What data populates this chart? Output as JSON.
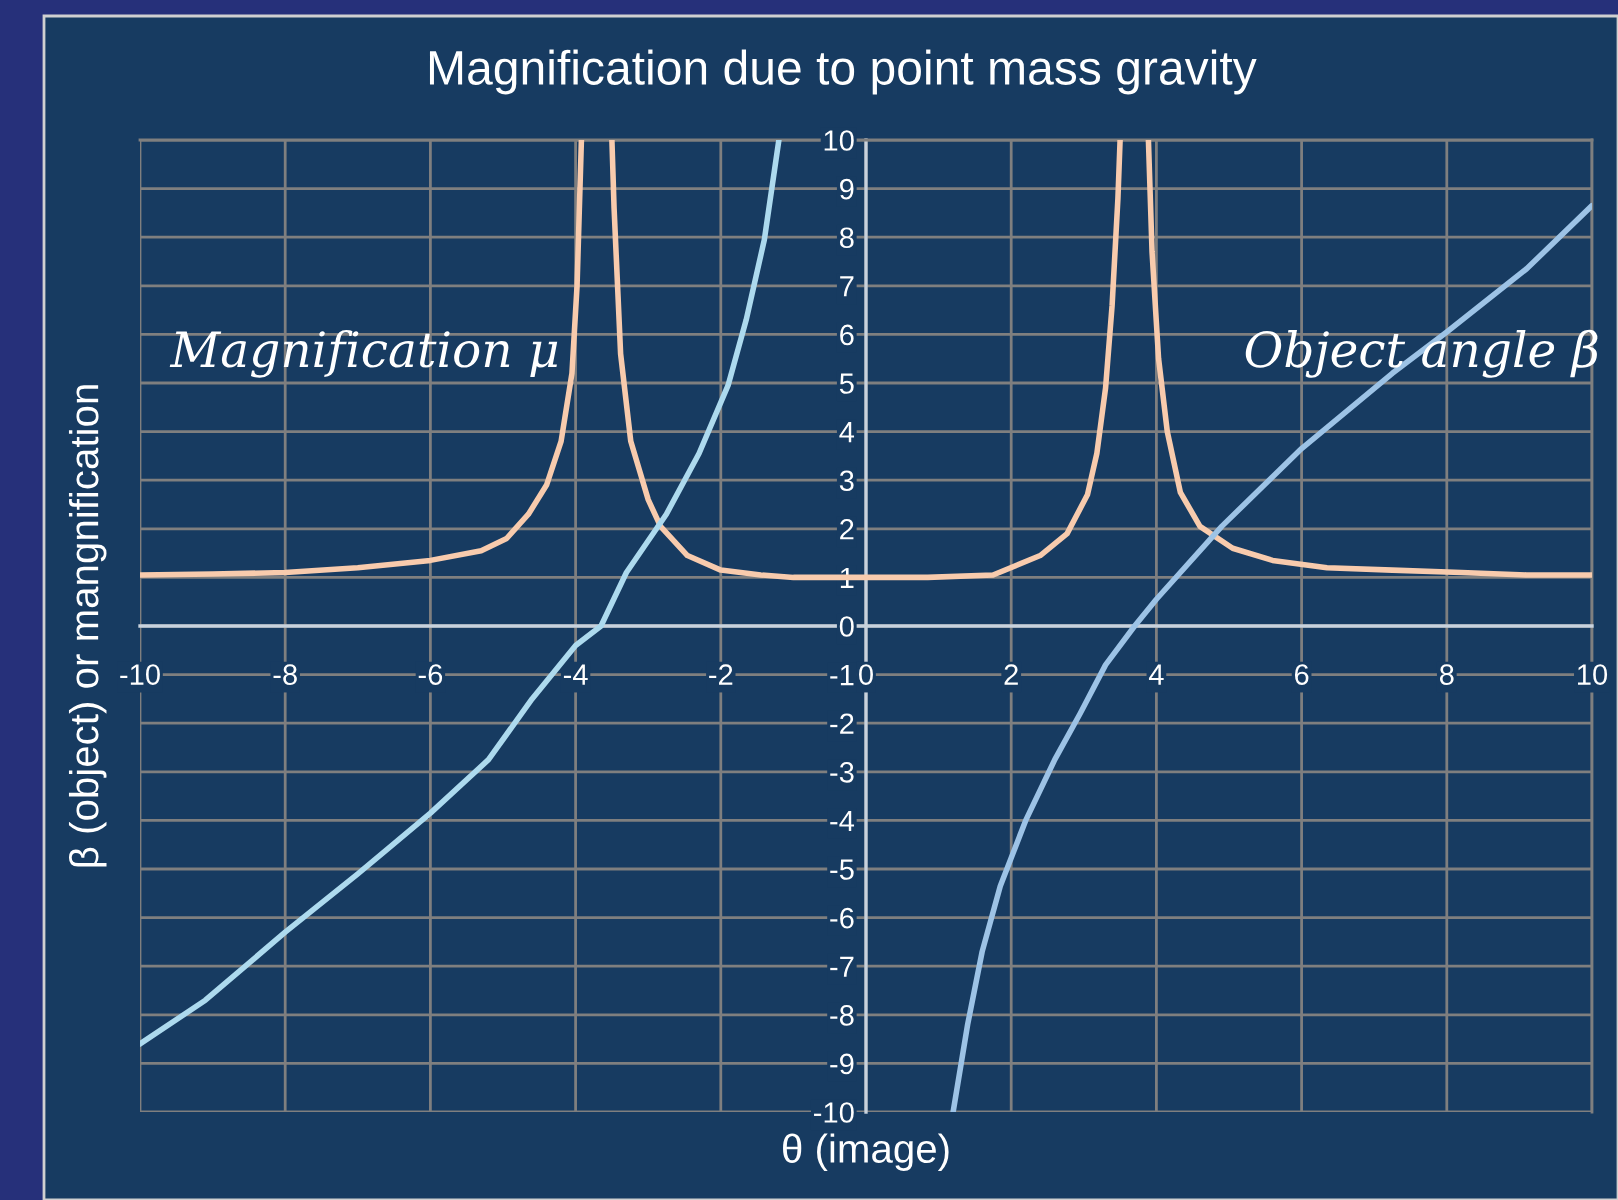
{
  "chart_data": {
    "type": "line",
    "title": "Magnification due to point mass gravity",
    "xlabel": "θ (image)",
    "ylabel": "β (object) or mangnification",
    "series": [
      {
        "name": "Magnification μ",
        "color": "#f8cbad",
        "x": [
          -10,
          -9,
          -8,
          -7,
          -6,
          -5.3,
          -4.95,
          -4.65,
          -4.4,
          -4.2,
          -4.05,
          -3.98,
          -3.92,
          -3.7,
          -3.5,
          -3.47,
          -3.38,
          -3.24,
          -3.0,
          -2.83,
          -2.46,
          -2.0,
          -1.45,
          -1.0,
          0,
          0.85,
          1.75,
          2.4,
          2.77,
          3.05,
          3.18,
          3.3,
          3.39,
          3.47,
          3.5,
          3.7,
          3.89,
          3.94,
          4.03,
          4.15,
          4.33,
          4.6,
          5.05,
          5.6,
          6.35,
          7.25,
          8.2,
          9.1,
          10
        ],
        "values": [
          1.05,
          1.07,
          1.1,
          1.2,
          1.35,
          1.55,
          1.8,
          2.3,
          2.9,
          3.8,
          5.2,
          7,
          10,
          null,
          10,
          8.6,
          5.6,
          3.8,
          2.6,
          2.05,
          1.45,
          1.15,
          1.05,
          1.0,
          1.0,
          1.0,
          1.05,
          1.45,
          1.9,
          2.7,
          3.55,
          4.9,
          6.6,
          8.8,
          10,
          null,
          10,
          7.7,
          5.5,
          4.0,
          2.75,
          2.05,
          1.6,
          1.35,
          1.2,
          1.15,
          1.1,
          1.05,
          1.05
        ]
      },
      {
        "color": "#addaee",
        "x": [
          -10,
          -9.1,
          -8,
          -7,
          -6.6,
          -6,
          -5.2,
          -4.6,
          -4,
          -3.65,
          -3.3,
          -2.75,
          -2.3,
          -1.9,
          -1.65,
          -1.4,
          -1.2
        ],
        "values": [
          -8.6,
          -7.7,
          -6.3,
          -5.1,
          -4.6,
          -3.85,
          -2.75,
          -1.5,
          -0.4,
          0,
          1.1,
          2.3,
          3.55,
          4.95,
          6.3,
          7.95,
          10
        ]
      },
      {
        "name": "Object angle β",
        "color": "#9dc3e6",
        "x": [
          1.2,
          1.4,
          1.6,
          1.85,
          2.2,
          2.6,
          2.95,
          3.3,
          3.7,
          4,
          4.9,
          6,
          7.25,
          8,
          9.1,
          10
        ],
        "values": [
          -10,
          -8.2,
          -6.7,
          -5.35,
          -4,
          -2.75,
          -1.8,
          -0.8,
          0,
          0.55,
          2.05,
          3.65,
          5.2,
          6.05,
          7.35,
          8.65
        ]
      }
    ],
    "xlim": [
      -10,
      10
    ],
    "ylim": [
      -10,
      10
    ],
    "xticks": [
      -10,
      -8,
      -6,
      -4,
      -2,
      0,
      2,
      4,
      6,
      8,
      10
    ],
    "yticks": [
      -10,
      -9,
      -8,
      -7,
      -6,
      -5,
      -4,
      -3,
      -2,
      -1,
      0,
      1,
      2,
      3,
      4,
      5,
      6,
      7,
      8,
      9,
      10
    ],
    "grid": true
  }
}
